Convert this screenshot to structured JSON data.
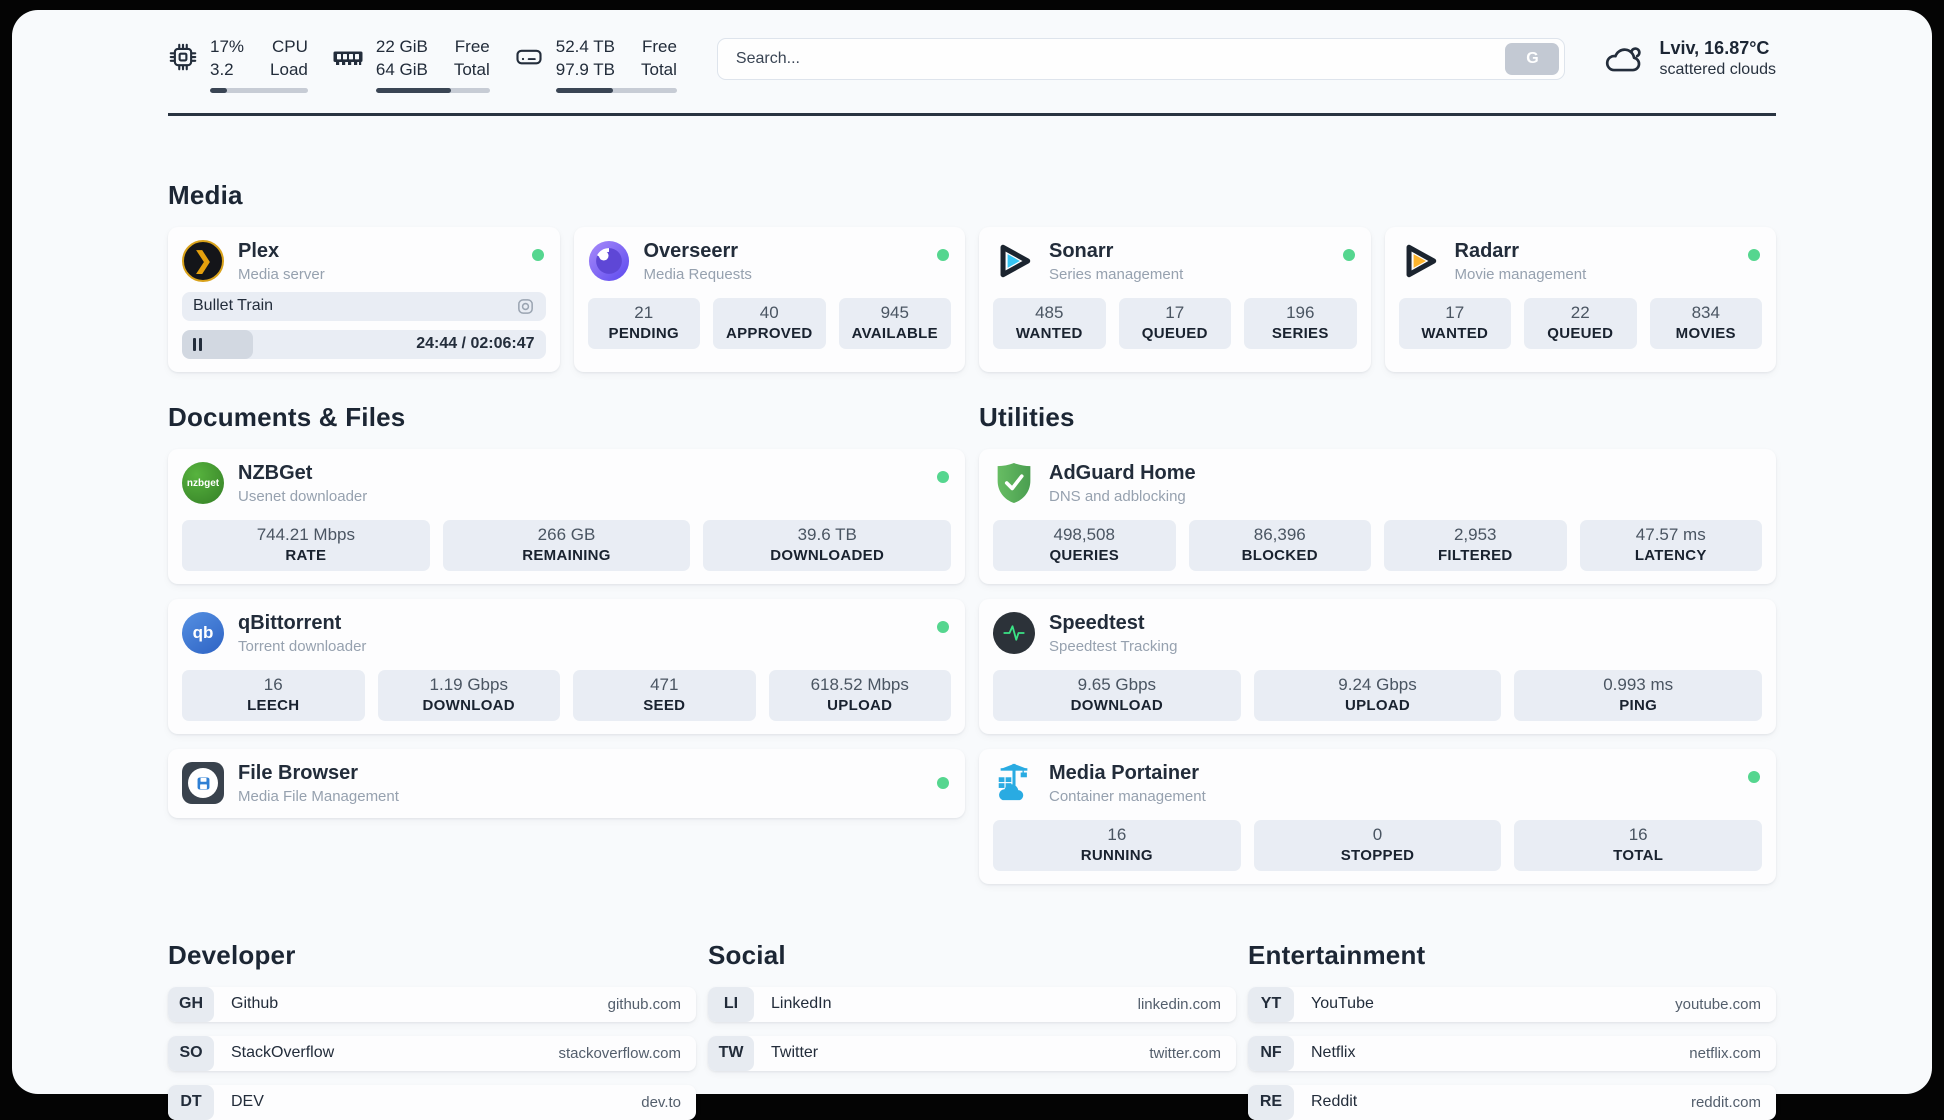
{
  "header": {
    "stats": [
      {
        "id": "cpu",
        "values": [
          "17%",
          "3.2"
        ],
        "labels": [
          "CPU",
          "Load"
        ],
        "progress_pct": 17
      },
      {
        "id": "memory",
        "values": [
          "22 GiB",
          "64 GiB"
        ],
        "labels": [
          "Free",
          "Total"
        ],
        "progress_pct": 66
      },
      {
        "id": "disk",
        "values": [
          "52.4 TB",
          "97.9 TB"
        ],
        "labels": [
          "Free",
          "Total"
        ],
        "progress_pct": 47
      }
    ],
    "search": {
      "placeholder": "Search...",
      "button_label": "G"
    },
    "weather": {
      "title": "Lviv, 16.87°C",
      "subtitle": "scattered clouds"
    }
  },
  "media": {
    "title": "Media",
    "cards": [
      {
        "name": "Plex",
        "subtitle": "Media server",
        "icon_glyph": "❯",
        "online": true,
        "now_playing": {
          "title": "Bullet Train",
          "time_display": "24:44 / 02:06:47",
          "progress_pct": 19.5
        }
      },
      {
        "name": "Overseerr",
        "subtitle": "Media Requests",
        "online": true,
        "stats": [
          {
            "value": "21",
            "label": "PENDING"
          },
          {
            "value": "40",
            "label": "APPROVED"
          },
          {
            "value": "945",
            "label": "AVAILABLE"
          }
        ]
      },
      {
        "name": "Sonarr",
        "subtitle": "Series management",
        "online": true,
        "stats": [
          {
            "value": "485",
            "label": "WANTED"
          },
          {
            "value": "17",
            "label": "QUEUED"
          },
          {
            "value": "196",
            "label": "SERIES"
          }
        ]
      },
      {
        "name": "Radarr",
        "subtitle": "Movie management",
        "online": true,
        "stats": [
          {
            "value": "17",
            "label": "WANTED"
          },
          {
            "value": "22",
            "label": "QUEUED"
          },
          {
            "value": "834",
            "label": "MOVIES"
          }
        ]
      }
    ]
  },
  "documents": {
    "title": "Documents & Files",
    "cards": [
      {
        "name": "NZBGet",
        "subtitle": "Usenet downloader",
        "icon_text": "nzbget",
        "online": true,
        "stats": [
          {
            "value": "744.21 Mbps",
            "label": "RATE"
          },
          {
            "value": "266 GB",
            "label": "REMAINING"
          },
          {
            "value": "39.6 TB",
            "label": "DOWNLOADED"
          }
        ]
      },
      {
        "name": "qBittorrent",
        "subtitle": "Torrent downloader",
        "icon_text": "qb",
        "online": true,
        "stats": [
          {
            "value": "16",
            "label": "LEECH"
          },
          {
            "value": "1.19 Gbps",
            "label": "DOWNLOAD"
          },
          {
            "value": "471",
            "label": "SEED"
          },
          {
            "value": "618.52 Mbps",
            "label": "UPLOAD"
          }
        ]
      },
      {
        "name": "File Browser",
        "subtitle": "Media File Management",
        "online": true,
        "stats": []
      }
    ]
  },
  "utilities": {
    "title": "Utilities",
    "cards": [
      {
        "name": "AdGuard Home",
        "subtitle": "DNS and adblocking",
        "online": false,
        "stats": [
          {
            "value": "498,508",
            "label": "QUERIES"
          },
          {
            "value": "86,396",
            "label": "BLOCKED"
          },
          {
            "value": "2,953",
            "label": "FILTERED"
          },
          {
            "value": "47.57 ms",
            "label": "LATENCY"
          }
        ]
      },
      {
        "name": "Speedtest",
        "subtitle": "Speedtest Tracking",
        "online": false,
        "stats": [
          {
            "value": "9.65 Gbps",
            "label": "DOWNLOAD"
          },
          {
            "value": "9.24 Gbps",
            "label": "UPLOAD"
          },
          {
            "value": "0.993 ms",
            "label": "PING"
          }
        ]
      },
      {
        "name": "Media Portainer",
        "subtitle": "Container management",
        "online": true,
        "stats": [
          {
            "value": "16",
            "label": "RUNNING"
          },
          {
            "value": "0",
            "label": "STOPPED"
          },
          {
            "value": "16",
            "label": "TOTAL"
          }
        ]
      }
    ]
  },
  "links": [
    {
      "title": "Developer",
      "items": [
        {
          "abbr": "GH",
          "name": "Github",
          "url": "github.com"
        },
        {
          "abbr": "SO",
          "name": "StackOverflow",
          "url": "stackoverflow.com"
        },
        {
          "abbr": "DT",
          "name": "DEV",
          "url": "dev.to"
        }
      ]
    },
    {
      "title": "Social",
      "items": [
        {
          "abbr": "LI",
          "name": "LinkedIn",
          "url": "linkedin.com"
        },
        {
          "abbr": "TW",
          "name": "Twitter",
          "url": "twitter.com"
        }
      ]
    },
    {
      "title": "Entertainment",
      "items": [
        {
          "abbr": "YT",
          "name": "YouTube",
          "url": "youtube.com"
        },
        {
          "abbr": "NF",
          "name": "Netflix",
          "url": "netflix.com"
        },
        {
          "abbr": "RE",
          "name": "Reddit",
          "url": "reddit.com"
        }
      ]
    }
  ],
  "colors": {
    "page_background": "#040404",
    "panel_background": "#f8fafc",
    "status_green": "#55d68f",
    "stat_box_background": "#e9edf4",
    "dark_text": "#222c3a",
    "plex_amber": "#e5a00d",
    "sonarr_cyan": "#35c5f4",
    "radarr_amber": "#fdb42d",
    "overseerr_purple": "#6c5ce7",
    "nzbget_green": "#46a335",
    "qbittorrent_blue": "#3d7edb",
    "filebrowser_blue": "#2f80d4",
    "adguard_green": "#56b05b",
    "speedtest_pulse": "#3ae385",
    "portainer_blue": "#29abe2"
  }
}
